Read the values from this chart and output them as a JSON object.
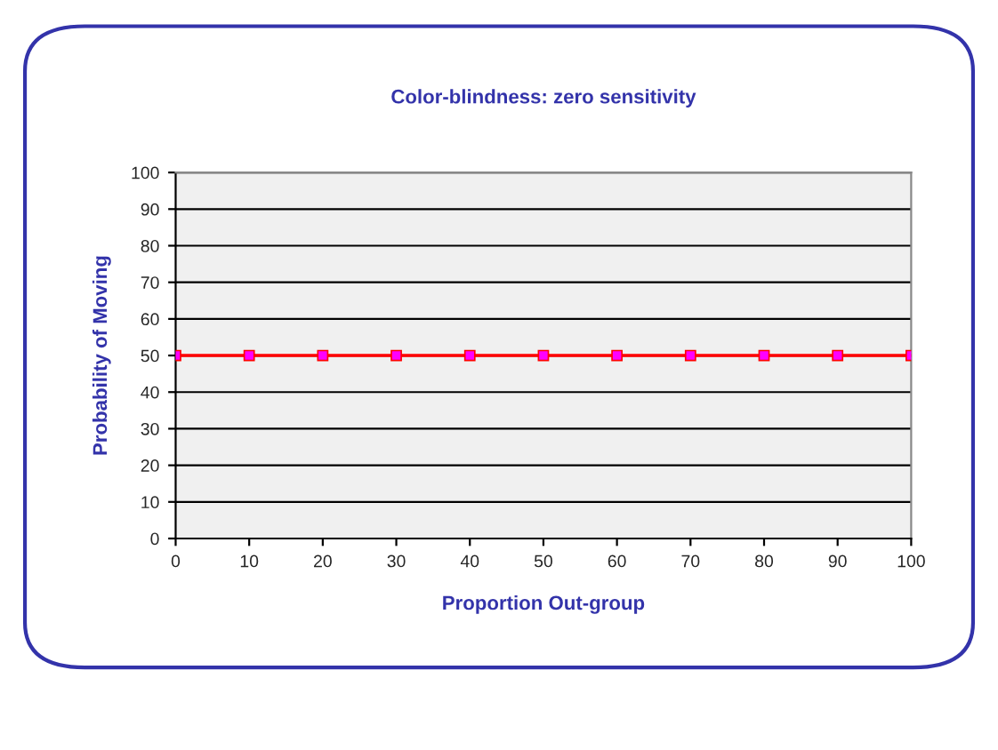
{
  "chart_data": {
    "type": "line",
    "title": "Color-blindness: zero sensitivity",
    "xlabel": "Proportion Out-group",
    "ylabel": "Probability of Moving",
    "x": [
      0,
      10,
      20,
      30,
      40,
      50,
      60,
      70,
      80,
      90,
      100
    ],
    "series": [
      {
        "color": "#ff0000",
        "values": [
          50,
          50,
          50,
          50,
          50,
          50,
          50,
          50,
          50,
          50,
          50
        ]
      }
    ],
    "xlim": [
      0,
      100
    ],
    "xticks": [
      0,
      10,
      20,
      30,
      40,
      50,
      60,
      70,
      80,
      90,
      100
    ],
    "ylim": [
      0,
      100
    ],
    "yticks": [
      0,
      10,
      20,
      30,
      40,
      50,
      60,
      70,
      80,
      90,
      100
    ],
    "grid": "y",
    "marker": "square",
    "line_style": "solid"
  }
}
